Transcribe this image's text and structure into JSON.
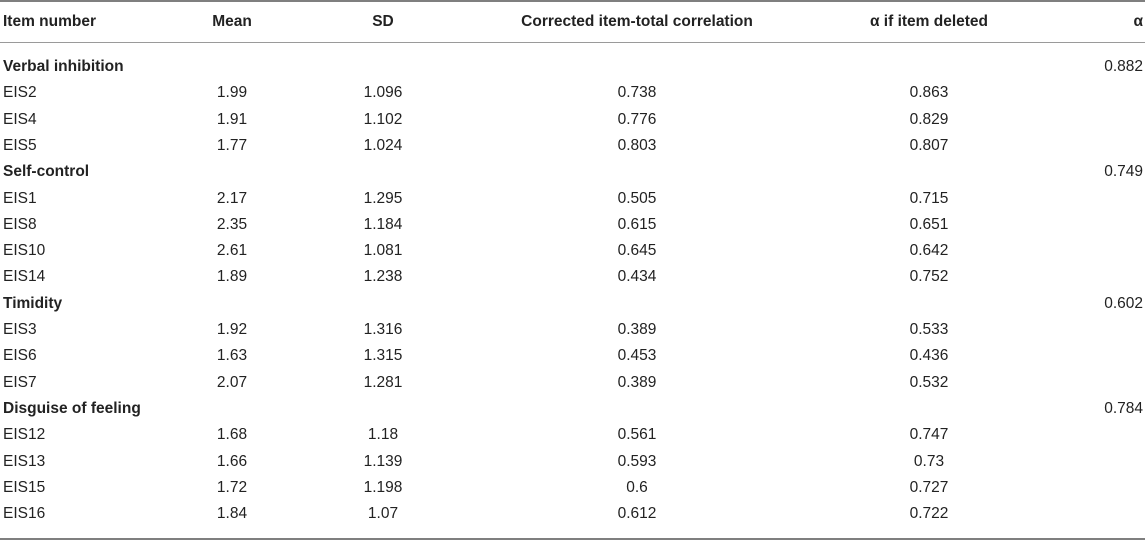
{
  "table": {
    "headers": [
      "Item number",
      "Mean",
      "SD",
      "Corrected item-total correlation",
      "α if item deleted",
      "α"
    ],
    "groups": [
      {
        "name": "Verbal inhibition",
        "alpha": "0.882",
        "rows": [
          [
            "EIS2",
            "1.99",
            "1.096",
            "0.738",
            "0.863"
          ],
          [
            "EIS4",
            "1.91",
            "1.102",
            "0.776",
            "0.829"
          ],
          [
            "EIS5",
            "1.77",
            "1.024",
            "0.803",
            "0.807"
          ]
        ]
      },
      {
        "name": "Self-control",
        "alpha": "0.749",
        "rows": [
          [
            "EIS1",
            "2.17",
            "1.295",
            "0.505",
            "0.715"
          ],
          [
            "EIS8",
            "2.35",
            "1.184",
            "0.615",
            "0.651"
          ],
          [
            "EIS10",
            "2.61",
            "1.081",
            "0.645",
            "0.642"
          ],
          [
            "EIS14",
            "1.89",
            "1.238",
            "0.434",
            "0.752"
          ]
        ]
      },
      {
        "name": "Timidity",
        "alpha": "0.602",
        "rows": [
          [
            "EIS3",
            "1.92",
            "1.316",
            "0.389",
            "0.533"
          ],
          [
            "EIS6",
            "1.63",
            "1.315",
            "0.453",
            "0.436"
          ],
          [
            "EIS7",
            "2.07",
            "1.281",
            "0.389",
            "0.532"
          ]
        ]
      },
      {
        "name": "Disguise of feeling",
        "alpha": "0.784",
        "rows": [
          [
            "EIS12",
            "1.68",
            "1.18",
            "0.561",
            "0.747"
          ],
          [
            "EIS13",
            "1.66",
            "1.139",
            "0.593",
            "0.73"
          ],
          [
            "EIS15",
            "1.72",
            "1.198",
            "0.6",
            "0.727"
          ],
          [
            "EIS16",
            "1.84",
            "1.07",
            "0.612",
            "0.722"
          ]
        ]
      }
    ]
  }
}
